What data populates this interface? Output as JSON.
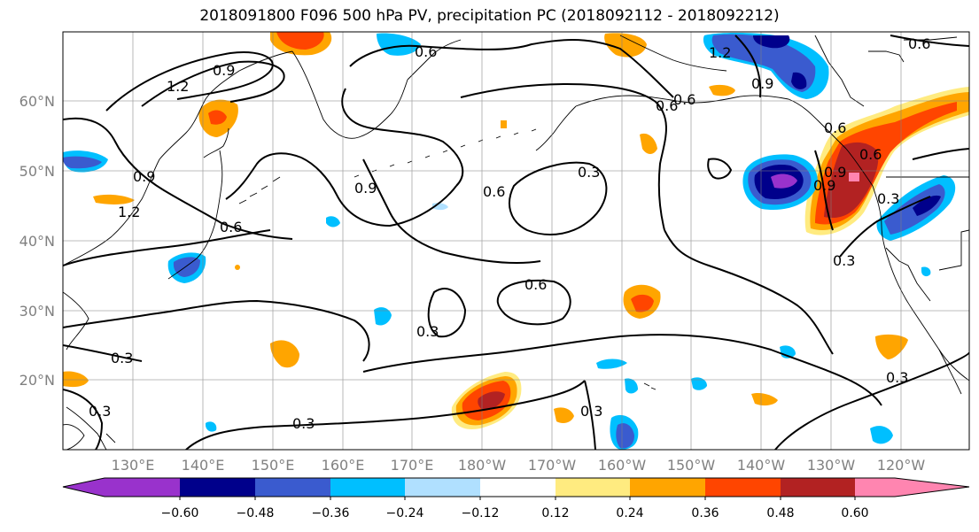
{
  "title": "2018091800 F096 500 hPa PV, precipitation PC (2018092112 - 2018092212)",
  "lat_labels": [
    "60°N",
    "50°N",
    "40°N",
    "30°N",
    "20°N"
  ],
  "lon_labels": [
    "130°E",
    "140°E",
    "150°E",
    "160°E",
    "170°E",
    "180°W",
    "170°W",
    "160°W",
    "150°W",
    "140°W",
    "130°W",
    "120°W"
  ],
  "colorbar": {
    "tick_labels": [
      "−0.60",
      "−0.48",
      "−0.36",
      "−0.24",
      "−0.12",
      "0.12",
      "0.24",
      "0.36",
      "0.48",
      "0.60"
    ],
    "colors": [
      "#9932CC",
      "#00008B",
      "#3A5BCF",
      "#00BFFF",
      "#B0E0FF",
      "#FFFFFF",
      "#FFEB80",
      "#FFA500",
      "#FF4500",
      "#B22222",
      "#FF85B0"
    ]
  },
  "contour_labels": [
    "1.2",
    "0.9",
    "0.6",
    "0.6",
    "0.9",
    "1.2",
    "0.9",
    "0.6",
    "0.6",
    "0.9",
    "0.6",
    "0.3",
    "0.6",
    "0.3",
    "0.3",
    "0.3",
    "0.3",
    "0.3",
    "0.3",
    "0.3",
    "0.9",
    "0.6",
    "1.2",
    "0.6",
    "0.9",
    "0.6",
    "0.3"
  ]
}
